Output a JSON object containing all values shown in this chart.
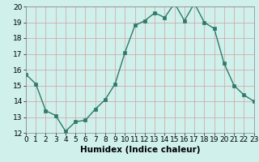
{
  "x": [
    0,
    1,
    2,
    3,
    4,
    5,
    6,
    7,
    8,
    9,
    10,
    11,
    12,
    13,
    14,
    15,
    16,
    17,
    18,
    19,
    20,
    21,
    22,
    23
  ],
  "y": [
    15.7,
    15.1,
    13.4,
    13.1,
    12.1,
    12.7,
    12.8,
    13.5,
    14.1,
    15.1,
    17.1,
    18.8,
    19.1,
    19.6,
    19.3,
    20.2,
    19.1,
    20.2,
    19.0,
    18.6,
    16.4,
    15.0,
    14.4,
    14.0
  ],
  "xlabel": "Humidex (Indice chaleur)",
  "xlim": [
    0,
    23
  ],
  "ylim": [
    12,
    20
  ],
  "yticks": [
    12,
    13,
    14,
    15,
    16,
    17,
    18,
    19,
    20
  ],
  "xticks": [
    0,
    1,
    2,
    3,
    4,
    5,
    6,
    7,
    8,
    9,
    10,
    11,
    12,
    13,
    14,
    15,
    16,
    17,
    18,
    19,
    20,
    21,
    22,
    23
  ],
  "line_color": "#2d7a6a",
  "marker_color": "#2d7a6a",
  "bg_color": "#cff0eb",
  "grid_color": "#b0ddd8",
  "xlabel_fontsize": 7.5,
  "tick_fontsize": 6.5
}
